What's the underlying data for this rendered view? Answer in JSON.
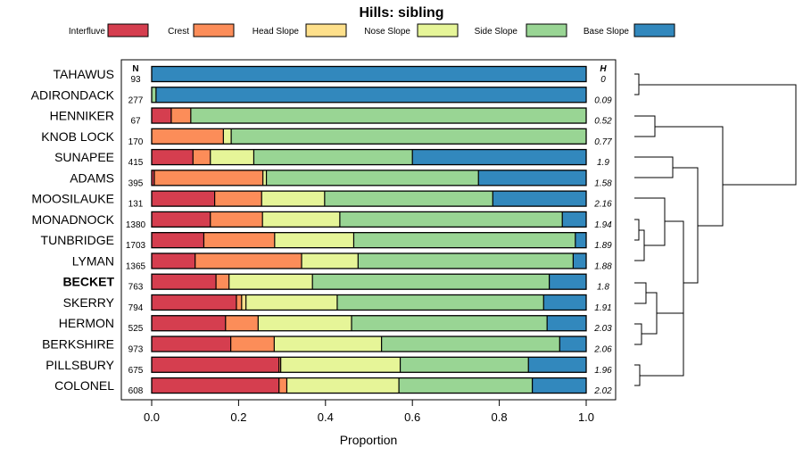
{
  "chart_data": {
    "type": "bar",
    "orientation": "horizontal",
    "stacked": true,
    "title": "Hills: sibling",
    "xlabel": "Proportion",
    "ylabel": "",
    "xlim": [
      0,
      1
    ],
    "x_ticks": [
      "0.0",
      "0.2",
      "0.4",
      "0.6",
      "0.8",
      "1.0"
    ],
    "n_header": "N",
    "h_header": "H",
    "series": [
      {
        "name": "Interfluve",
        "color": "#D53E4F"
      },
      {
        "name": "Crest",
        "color": "#FC8D59"
      },
      {
        "name": "Head Slope",
        "color": "#FEE08B"
      },
      {
        "name": "Nose Slope",
        "color": "#E6F598"
      },
      {
        "name": "Side Slope",
        "color": "#99D594"
      },
      {
        "name": "Base Slope",
        "color": "#3288BD"
      }
    ],
    "categories": [
      {
        "name": "TAHAWUS",
        "n": "93",
        "h": "0",
        "bold": false,
        "values": [
          0,
          0,
          0,
          0,
          0,
          1.0
        ]
      },
      {
        "name": "ADIRONDACK",
        "n": "277",
        "h": "0.09",
        "bold": false,
        "values": [
          0,
          0,
          0,
          0,
          0.01,
          0.99
        ]
      },
      {
        "name": "HENNIKER",
        "n": "67",
        "h": "0.52",
        "bold": false,
        "values": [
          0.045,
          0.045,
          0,
          0,
          0.91,
          0
        ]
      },
      {
        "name": "KNOB LOCK",
        "n": "170",
        "h": "0.77",
        "bold": false,
        "values": [
          0,
          0.165,
          0,
          0.018,
          0.817,
          0
        ]
      },
      {
        "name": "SUNAPEE",
        "n": "415",
        "h": "1.9",
        "bold": false,
        "values": [
          0.095,
          0.04,
          0,
          0.1,
          0.365,
          0.4
        ]
      },
      {
        "name": "ADAMS",
        "n": "395",
        "h": "1.58",
        "bold": false,
        "values": [
          0.006,
          0.25,
          0,
          0.008,
          0.488,
          0.248
        ]
      },
      {
        "name": "MOOSILAUKE",
        "n": "131",
        "h": "2.16",
        "bold": false,
        "values": [
          0.145,
          0.108,
          0,
          0.145,
          0.387,
          0.215
        ]
      },
      {
        "name": "MONADNOCK",
        "n": "1380",
        "h": "1.94",
        "bold": false,
        "values": [
          0.135,
          0.12,
          0,
          0.178,
          0.512,
          0.055
        ]
      },
      {
        "name": "TUNBRIDGE",
        "n": "1703",
        "h": "1.89",
        "bold": false,
        "values": [
          0.12,
          0.163,
          0,
          0.182,
          0.51,
          0.025
        ]
      },
      {
        "name": "LYMAN",
        "n": "1365",
        "h": "1.88",
        "bold": false,
        "values": [
          0.1,
          0.245,
          0,
          0.13,
          0.495,
          0.03
        ]
      },
      {
        "name": "BECKET",
        "n": "763",
        "h": "1.8",
        "bold": true,
        "values": [
          0.148,
          0.03,
          0,
          0.192,
          0.545,
          0.085
        ]
      },
      {
        "name": "SKERRY",
        "n": "794",
        "h": "1.91",
        "bold": false,
        "values": [
          0.195,
          0.012,
          0.01,
          0.21,
          0.475,
          0.098
        ]
      },
      {
        "name": "HERMON",
        "n": "525",
        "h": "2.03",
        "bold": false,
        "values": [
          0.17,
          0.075,
          0,
          0.215,
          0.45,
          0.09
        ]
      },
      {
        "name": "BERKSHIRE",
        "n": "973",
        "h": "2.06",
        "bold": false,
        "values": [
          0.182,
          0.1,
          0,
          0.247,
          0.41,
          0.061
        ]
      },
      {
        "name": "PILLSBURY",
        "n": "675",
        "h": "1.96",
        "bold": false,
        "values": [
          0.293,
          0.004,
          0,
          0.275,
          0.295,
          0.133
        ]
      },
      {
        "name": "COLONEL",
        "n": "608",
        "h": "2.02",
        "bold": false,
        "values": [
          0.293,
          0.018,
          0,
          0.258,
          0.307,
          0.124
        ]
      }
    ],
    "dendrogram": "hierarchical clustering of the 16 hills shown on the right side"
  }
}
